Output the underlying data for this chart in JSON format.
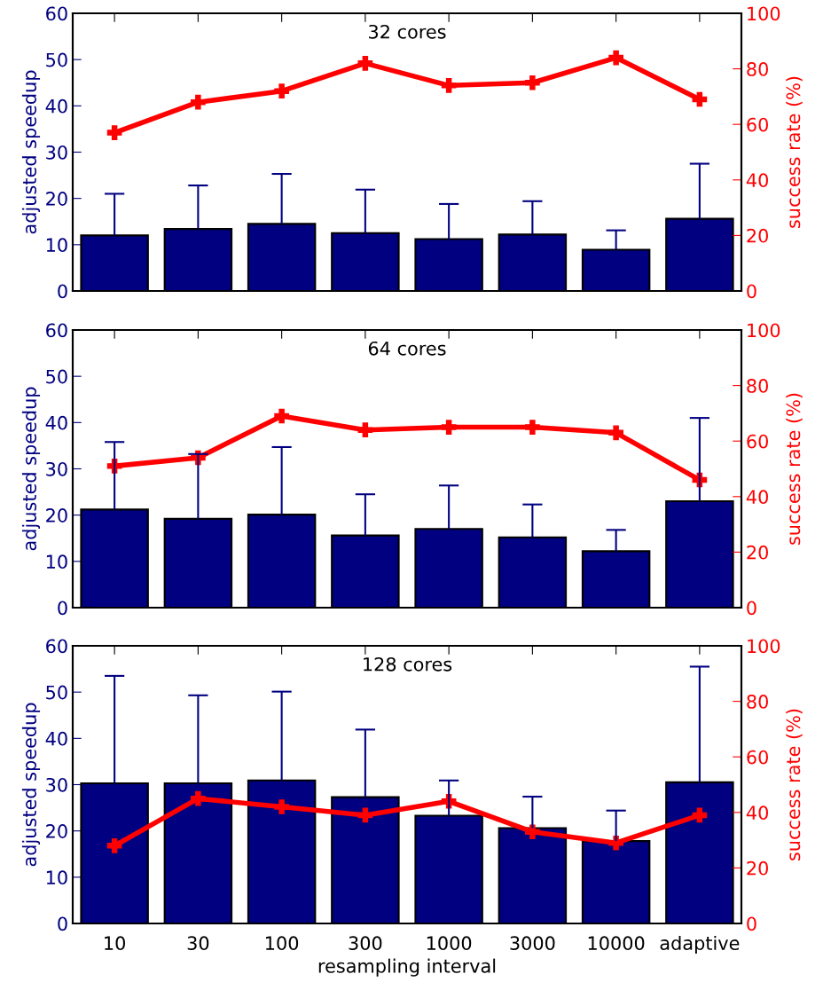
{
  "chart_data": [
    {
      "type": "bar",
      "title": "32 cores",
      "ylabel": "adjusted speedup",
      "y2label": "success rate (%)",
      "categories": [
        null,
        null,
        null,
        null,
        null,
        null,
        null,
        null
      ],
      "ylim": [
        0,
        60
      ],
      "yticks": [
        0,
        10,
        20,
        30,
        40,
        50,
        60
      ],
      "y2lim": [
        0,
        100
      ],
      "y2ticks": [
        0,
        20,
        40,
        60,
        80,
        100
      ],
      "tick_labels": "y",
      "grid": false,
      "legend": false,
      "series": [
        {
          "color": "#000080",
          "values": [
            12.0,
            13.4,
            14.5,
            12.5,
            11.2,
            12.2,
            8.9,
            15.6
          ],
          "errors": [
            [
              12.0,
              21.0
            ],
            [
              13.4,
              22.8
            ],
            [
              14.5,
              25.3
            ],
            [
              12.5,
              21.9
            ],
            [
              11.2,
              18.8
            ],
            [
              12.2,
              19.4
            ],
            [
              8.9,
              13.1
            ],
            [
              15.6,
              27.5
            ]
          ]
        },
        {
          "type": "line",
          "axis": "y2",
          "color": "#ff0000",
          "marker": "cross",
          "line_style": "solid",
          "values": [
            57,
            68,
            72,
            82,
            74,
            75,
            84,
            69
          ]
        }
      ]
    },
    {
      "type": "bar",
      "title": "64 cores",
      "ylabel": "adjusted speedup",
      "y2label": "success rate (%)",
      "categories": [
        null,
        null,
        null,
        null,
        null,
        null,
        null,
        null
      ],
      "ylim": [
        0,
        60
      ],
      "yticks": [
        0,
        10,
        20,
        30,
        40,
        50,
        60
      ],
      "y2lim": [
        0,
        100
      ],
      "y2ticks": [
        0,
        20,
        40,
        60,
        80,
        100
      ],
      "tick_labels": "y",
      "grid": false,
      "legend": false,
      "series": [
        {
          "color": "#000080",
          "values": [
            21.2,
            19.2,
            20.1,
            15.6,
            17.0,
            15.2,
            12.2,
            23.0
          ],
          "errors": [
            [
              21.2,
              35.8
            ],
            [
              19.2,
              33.2
            ],
            [
              20.1,
              34.7
            ],
            [
              15.6,
              24.5
            ],
            [
              17.0,
              26.4
            ],
            [
              15.2,
              22.3
            ],
            [
              12.2,
              16.8
            ],
            [
              23.0,
              41.0
            ]
          ]
        },
        {
          "type": "line",
          "axis": "y2",
          "color": "#ff0000",
          "marker": "cross",
          "line_style": "solid",
          "values": [
            51,
            54,
            69,
            64,
            65,
            65,
            63,
            46
          ]
        }
      ]
    },
    {
      "type": "bar",
      "title": "128 cores",
      "xlabel": "resampling interval",
      "ylabel": "adjusted speedup",
      "y2label": "success rate (%)",
      "categories": [
        "10",
        "30",
        "100",
        "300",
        "1000",
        "3000",
        "10000",
        "adaptive"
      ],
      "ylim": [
        0,
        60
      ],
      "yticks": [
        0,
        10,
        20,
        30,
        40,
        50,
        60
      ],
      "y2lim": [
        0,
        100
      ],
      "y2ticks": [
        0,
        20,
        40,
        60,
        80,
        100
      ],
      "grid": false,
      "legend": false,
      "series": [
        {
          "color": "#000080",
          "values": [
            30.3,
            30.3,
            30.9,
            27.3,
            23.3,
            20.6,
            17.8,
            30.5
          ],
          "errors": [
            [
              30.3,
              53.5
            ],
            [
              30.3,
              49.3
            ],
            [
              30.9,
              50.1
            ],
            [
              27.3,
              41.9
            ],
            [
              23.3,
              30.9
            ],
            [
              20.6,
              27.4
            ],
            [
              17.8,
              24.4
            ],
            [
              30.5,
              55.5
            ]
          ]
        },
        {
          "type": "line",
          "axis": "y2",
          "color": "#ff0000",
          "marker": "cross",
          "line_style": "solid",
          "values": [
            28,
            45,
            42,
            39,
            44,
            33,
            29,
            39
          ]
        }
      ]
    }
  ]
}
